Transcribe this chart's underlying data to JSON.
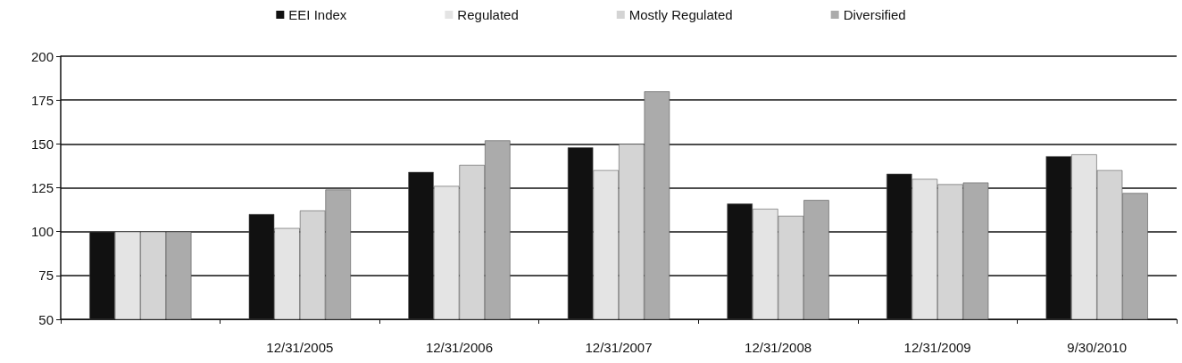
{
  "chart_data": {
    "type": "bar",
    "categories": [
      null,
      "12/31/2005",
      "12/31/2006",
      "12/31/2007",
      "12/31/2008",
      "12/31/2009",
      "9/30/2010"
    ],
    "series": [
      {
        "name": "EEI Index",
        "color": "#111111",
        "values": [
          100,
          110,
          134,
          148,
          116,
          133,
          143
        ]
      },
      {
        "name": "Regulated",
        "color": "#e4e4e4",
        "values": [
          100,
          102,
          126,
          135,
          113,
          130,
          144
        ]
      },
      {
        "name": "Mostly Regulated",
        "color": "#d4d4d4",
        "values": [
          100,
          112,
          138,
          150,
          109,
          127,
          135
        ]
      },
      {
        "name": "Diversified",
        "color": "#ababab",
        "values": [
          100,
          124,
          152,
          180,
          118,
          128,
          122
        ]
      }
    ],
    "ylim": [
      50,
      200
    ],
    "yticks": [
      50,
      75,
      100,
      125,
      150,
      175,
      200
    ],
    "grid": "y",
    "legend": "top"
  }
}
